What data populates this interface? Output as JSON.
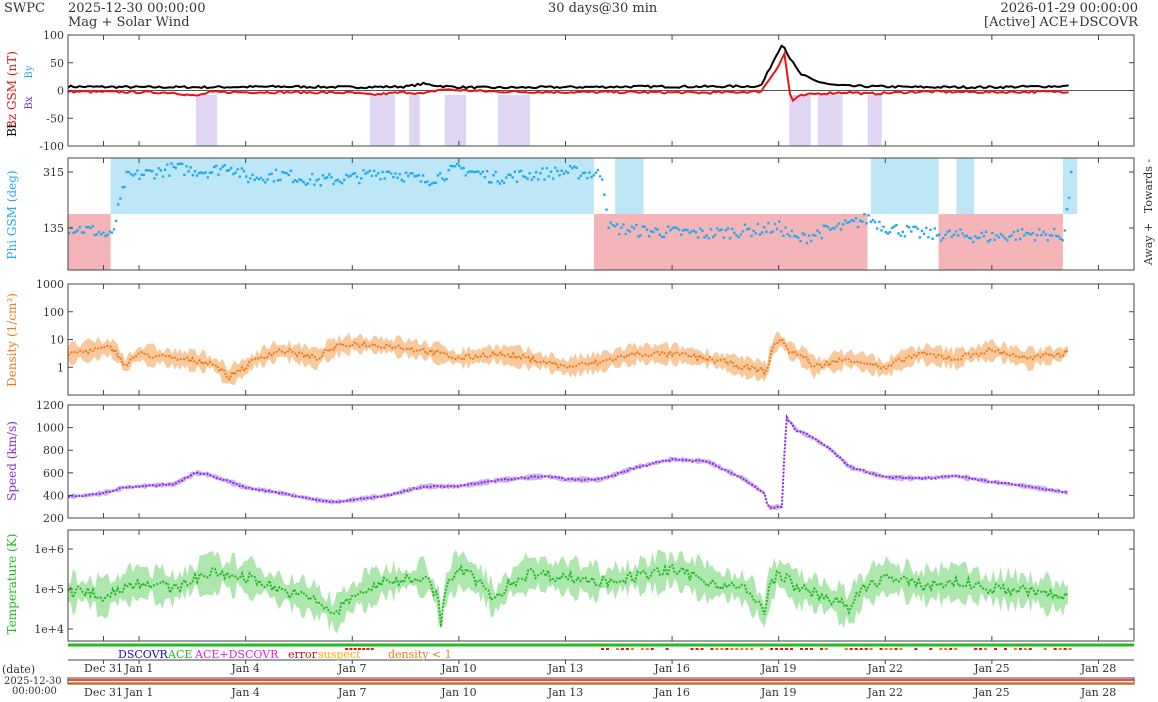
{
  "header": {
    "org": "SWPC",
    "start": "2025-12-30 00:00:00",
    "subtitle": "Mag + Solar Wind",
    "span": "30 days@30 min",
    "end": "2026-01-29 00:00:00",
    "source": "[Active] ACE+DSCOVR"
  },
  "colors": {
    "bt": "#000000",
    "bz": "#ee1111",
    "phi": "#22aaee",
    "away": "#f5b5b8",
    "towards": "#bde6f6",
    "density": "#f07a14",
    "density_band": "#f7c08c",
    "speed": "#8a2be2",
    "speed_band": "#c9a3ee",
    "temp": "#22bb22",
    "temp_band": "#9fe39f",
    "bx": "#7b2fd6",
    "by": "#2fa6e6"
  },
  "chart_data": [
    {
      "type": "line",
      "id": "mag",
      "ylabel_bt": "Bt",
      "ylabel_bz": "Bz GSM (nT)",
      "ylabel_bx": "Bx",
      "ylabel_by": "By",
      "ylim": [
        -100,
        100
      ],
      "yticks": [
        "100",
        "50",
        "0",
        "-50",
        "-100"
      ],
      "series": [
        {
          "name": "Bt",
          "x": [
            0,
            2,
            4,
            6,
            8,
            9.5,
            10,
            10.5,
            11,
            12,
            14,
            16,
            18,
            19.5,
            20.1,
            20.3,
            20.6,
            21,
            21.5,
            22,
            24,
            26,
            28.2
          ],
          "values": [
            7,
            6,
            6,
            7,
            6,
            7,
            12,
            8,
            6,
            5,
            6,
            7,
            7,
            8,
            85,
            60,
            30,
            18,
            10,
            8,
            6,
            6,
            8
          ]
        },
        {
          "name": "Bz",
          "x": [
            0,
            2,
            3,
            3.6,
            4,
            6,
            8,
            8.5,
            9.5,
            10,
            10.5,
            12,
            14,
            16,
            18,
            19.5,
            20.05,
            20.15,
            20.35,
            20.6,
            21,
            22,
            22.5,
            24,
            26,
            28.2
          ],
          "values": [
            -2,
            -3,
            -4,
            -10,
            -3,
            -3,
            -4,
            -8,
            -3,
            -6,
            2,
            -2,
            -3,
            -3,
            -4,
            -2,
            50,
            70,
            -20,
            -10,
            -6,
            -3,
            -6,
            -2,
            -3,
            -2
          ]
        }
      ]
    },
    {
      "type": "scatter",
      "id": "phi",
      "ylabel": "Phi GSM (deg)",
      "right_label_away": "Away +",
      "right_label_towards": "Towards -",
      "ylim": [
        0,
        360
      ],
      "yticks": [
        "315",
        "135"
      ],
      "series": [
        {
          "name": "Phi",
          "x": [
            0,
            0.7,
            1.2,
            1.6,
            2,
            3,
            4,
            4.5,
            5,
            6,
            7,
            8,
            9,
            10,
            11,
            12,
            13,
            14,
            15,
            15.2,
            16,
            17,
            18,
            19,
            20,
            20.5,
            21,
            22,
            22.5,
            23,
            24,
            25,
            26,
            27,
            28,
            28.2
          ],
          "values": [
            140,
            130,
            110,
            300,
            310,
            330,
            320,
            340,
            300,
            310,
            290,
            300,
            320,
            290,
            330,
            300,
            310,
            320,
            310,
            140,
            130,
            125,
            120,
            130,
            140,
            100,
            120,
            150,
            170,
            140,
            120,
            115,
            110,
            120,
            115,
            300
          ]
        }
      ]
    },
    {
      "type": "line",
      "id": "density",
      "ylabel": "Density (1/cm³)",
      "scale": "log",
      "ylim": [
        0.1,
        1000
      ],
      "yticks": [
        "1000",
        "100",
        "10",
        "1"
      ],
      "series": [
        {
          "name": "Density",
          "x": [
            0,
            0.6,
            1.2,
            1.6,
            2,
            3,
            4,
            4.5,
            5,
            6,
            7,
            7.5,
            8,
            9,
            10,
            11,
            12,
            13,
            14,
            15,
            16,
            17,
            18,
            19,
            19.7,
            20,
            20.3,
            21,
            22,
            23,
            24,
            25,
            26,
            27,
            28,
            28.2
          ],
          "values": [
            3,
            4,
            5,
            1,
            3,
            2,
            1.5,
            0.4,
            1,
            4,
            2,
            5,
            7,
            6,
            4,
            2,
            3,
            2,
            1,
            1.5,
            3,
            3,
            2,
            1,
            0.7,
            10,
            4,
            1,
            2,
            0.8,
            3,
            2,
            4,
            2,
            3,
            5
          ]
        }
      ]
    },
    {
      "type": "line",
      "id": "speed",
      "ylabel": "Speed (km/s)",
      "ylim": [
        200,
        1200
      ],
      "yticks": [
        "1200",
        "1000",
        "800",
        "600",
        "400",
        "200"
      ],
      "series": [
        {
          "name": "Speed",
          "x": [
            0,
            0.5,
            1,
            1.6,
            2,
            3,
            3.6,
            4,
            5,
            6,
            7,
            7.5,
            8,
            9,
            10,
            11,
            12,
            13,
            13.5,
            14,
            15,
            16,
            17,
            18,
            19,
            19.6,
            19.7,
            20.1,
            20.2,
            20.5,
            21,
            21.5,
            22,
            23,
            24,
            25,
            26,
            27,
            28.2
          ],
          "values": [
            390,
            400,
            420,
            470,
            480,
            500,
            600,
            580,
            470,
            420,
            360,
            340,
            360,
            400,
            480,
            480,
            530,
            560,
            570,
            540,
            540,
            650,
            720,
            700,
            550,
            420,
            290,
            300,
            1100,
            980,
            900,
            800,
            650,
            560,
            550,
            570,
            520,
            480,
            420
          ]
        }
      ]
    },
    {
      "type": "line",
      "id": "temp",
      "ylabel": "Temperature (K)",
      "scale": "log",
      "ylim": [
        5000,
        3000000
      ],
      "yticks": [
        "1e+6",
        "1e+5",
        "1e+4"
      ],
      "series": [
        {
          "name": "Temperature",
          "x": [
            0,
            0.5,
            1,
            2,
            3,
            4,
            5,
            6,
            7,
            7.5,
            8,
            9,
            10,
            10.5,
            11,
            12,
            13,
            14,
            15,
            16,
            17,
            18,
            19,
            19.6,
            20,
            20.5,
            21,
            22,
            23,
            24,
            25,
            26,
            27,
            28,
            28.2
          ],
          "values": [
            80000,
            90000,
            60000,
            150000,
            100000,
            250000,
            200000,
            90000,
            50000,
            20000,
            60000,
            150000,
            200000,
            15000,
            300000,
            40000,
            250000,
            200000,
            150000,
            200000,
            300000,
            150000,
            100000,
            20000,
            250000,
            100000,
            80000,
            30000,
            200000,
            120000,
            150000,
            100000,
            90000,
            60000,
            80000
          ]
        }
      ]
    }
  ],
  "legend": {
    "dscovr": "DSCOVR",
    "ace": "ACE",
    "combo": "ACE+DSCOVR",
    "error": "error",
    "suspect": "suspect",
    "density_lt1": "density < 1"
  },
  "xaxis": {
    "labels": [
      "Dec 31",
      "Jan 1",
      "Jan 4",
      "Jan 7",
      "Jan 10",
      "Jan 13",
      "Jan 16",
      "Jan 19",
      "Jan 22",
      "Jan 25",
      "Jan 28"
    ],
    "days": [
      1,
      2,
      5,
      8,
      11,
      14,
      17,
      20,
      23,
      26,
      29
    ],
    "date_label": "(date)",
    "start_date": "2025-12-30",
    "start_time": "00:00:00"
  }
}
